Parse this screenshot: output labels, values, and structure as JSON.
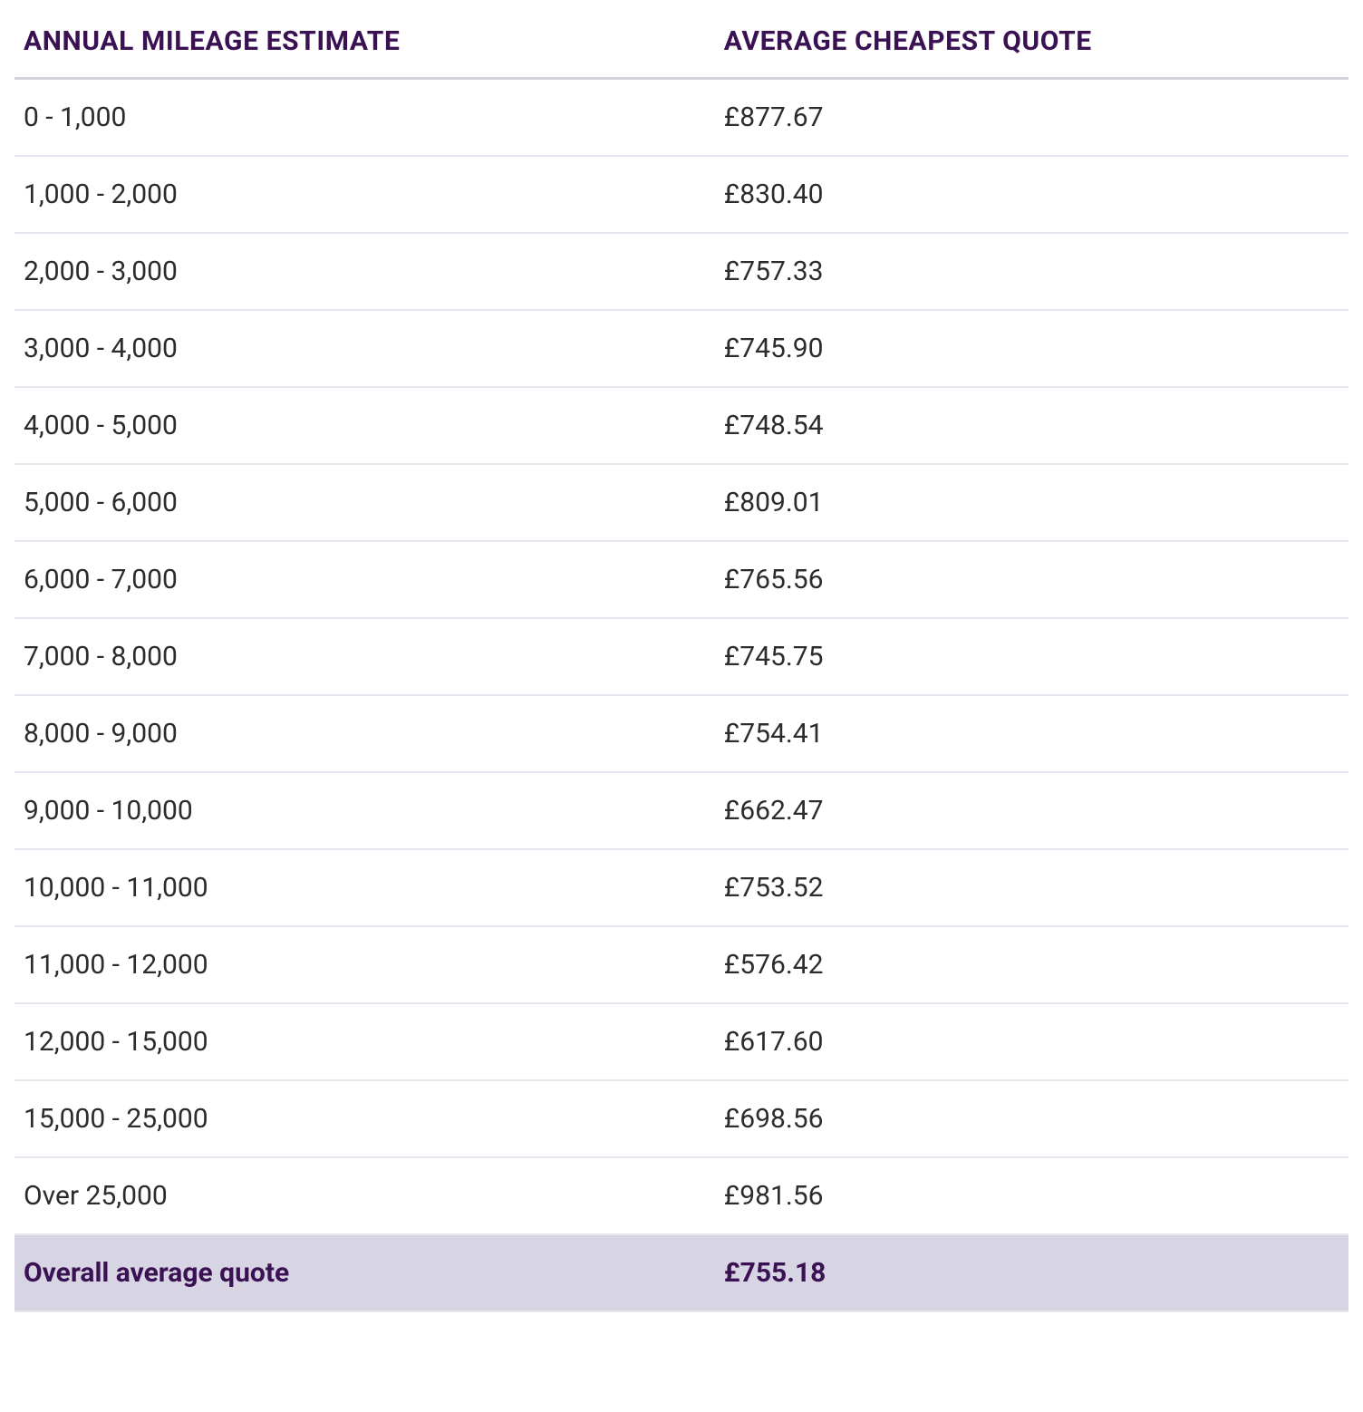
{
  "table": {
    "columns": [
      "ANNUAL MILEAGE ESTIMATE",
      "AVERAGE CHEAPEST QUOTE"
    ],
    "rows": [
      [
        "0 - 1,000",
        "£877.67"
      ],
      [
        "1,000 - 2,000",
        "£830.40"
      ],
      [
        "2,000 - 3,000",
        "£757.33"
      ],
      [
        "3,000 - 4,000",
        "£745.90"
      ],
      [
        "4,000 - 5,000",
        "£748.54"
      ],
      [
        "5,000 - 6,000",
        "£809.01"
      ],
      [
        "6,000 - 7,000",
        "£765.56"
      ],
      [
        "7,000 - 8,000",
        "£745.75"
      ],
      [
        "8,000 - 9,000",
        "£754.41"
      ],
      [
        "9,000 - 10,000",
        "£662.47"
      ],
      [
        "10,000 - 11,000",
        "£753.52"
      ],
      [
        "11,000 - 12,000",
        "£576.42"
      ],
      [
        "12,000 - 15,000",
        "£617.60"
      ],
      [
        "15,000 - 25,000",
        "£698.56"
      ],
      [
        "Over 25,000",
        "£981.56"
      ]
    ],
    "summary_row": [
      "Overall average quote",
      "£755.18"
    ],
    "style": {
      "header_font_size": 30,
      "header_color": "#3a1152",
      "header_border_color": "#d5d2e0",
      "body_font_size": 30,
      "body_color": "#2c2c2c",
      "row_border_color": "#e8e6ef",
      "summary_bg": "#d7d4e3",
      "summary_color": "#3a1152",
      "background_color": "#ffffff"
    }
  }
}
